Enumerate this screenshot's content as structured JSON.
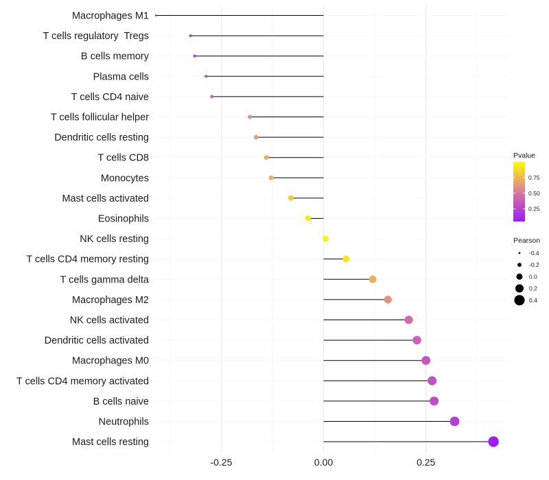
{
  "chart_data": {
    "type": "lollipop",
    "title": "",
    "xlabel": "",
    "ylabel": "",
    "xlim": [
      -0.415,
      0.45
    ],
    "xticks": [
      -0.25,
      0.0,
      0.25
    ],
    "xtick_labels": [
      "-0.25",
      "0.00",
      "0.25"
    ],
    "categories": [
      "Macrophages M1",
      "T cells regulatory  Tregs",
      "B cells memory",
      "Plasma cells",
      "T cells CD4 naive",
      "T cells follicular helper",
      "Dendritic cells resting",
      "T cells CD8",
      "Monocytes",
      "Mast cells activated",
      "Eosinophils",
      "NK cells resting",
      "T cells CD4 memory resting",
      "T cells gamma delta",
      "Macrophages M2",
      "NK cells activated",
      "Dendritic cells activated",
      "Macrophages M0",
      "T cells CD4 memory activated",
      "B cells naive",
      "Neutrophils",
      "Mast cells resting"
    ],
    "pearson": [
      -0.41,
      -0.325,
      -0.315,
      -0.287,
      -0.273,
      -0.18,
      -0.165,
      -0.14,
      -0.128,
      -0.08,
      -0.038,
      0.005,
      0.055,
      0.12,
      0.157,
      0.208,
      0.228,
      0.25,
      0.265,
      0.27,
      0.32,
      0.415
    ],
    "pvalue": [
      0.06,
      0.18,
      0.2,
      0.3,
      0.34,
      0.6,
      0.62,
      0.7,
      0.72,
      0.82,
      0.92,
      0.98,
      0.9,
      0.72,
      0.62,
      0.45,
      0.4,
      0.35,
      0.32,
      0.3,
      0.22,
      0.06
    ],
    "legend": {
      "color": {
        "title": "Pvalue",
        "breaks": [
          0.25,
          0.5,
          0.75
        ],
        "labels": [
          "0.25",
          "0.50",
          "0.75"
        ],
        "range": [
          0.05,
          1.0
        ],
        "low_color": "#9B1CF5",
        "mid_color": "#DA7C9F",
        "high_color": "#FFFC00"
      },
      "size": {
        "title": "Pearson",
        "breaks": [
          -0.4,
          -0.2,
          0.0,
          0.2,
          0.4
        ],
        "labels": [
          "-0.4",
          "-0.2",
          "0.0",
          "0.2",
          "0.4"
        ]
      }
    },
    "grid": true
  }
}
